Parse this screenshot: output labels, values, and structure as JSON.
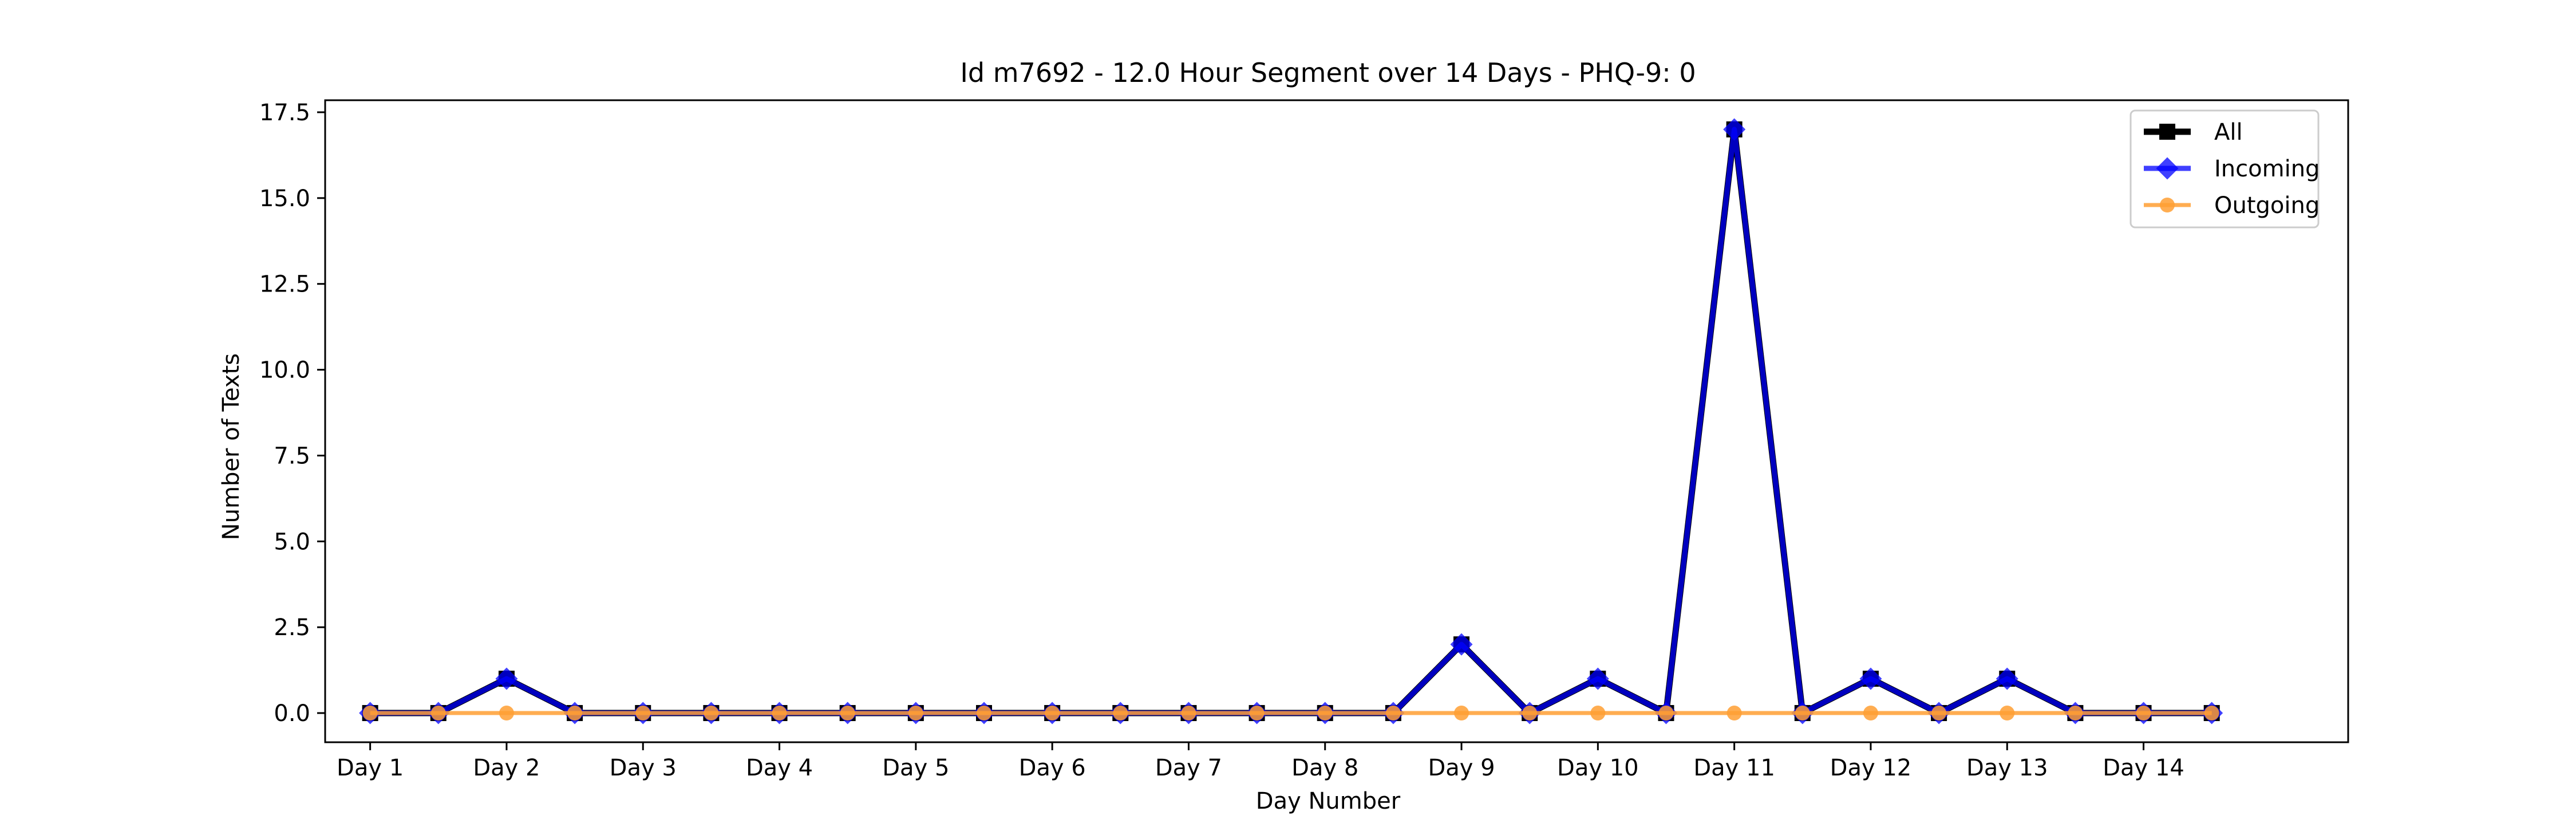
{
  "chart_data": {
    "type": "line",
    "title": "Id m7692 - 12.0 Hour Segment over 14 Days - PHQ-9: 0",
    "xlabel": "Day Number",
    "ylabel": "Number of Texts",
    "x_tick_labels": [
      "Day 1",
      "Day 2",
      "Day 3",
      "Day 4",
      "Day 5",
      "Day 6",
      "Day 7",
      "Day 8",
      "Day 9",
      "Day 10",
      "Day 11",
      "Day 12",
      "Day 13",
      "Day 14"
    ],
    "x_values": [
      1,
      1.5,
      2,
      2.5,
      3,
      3.5,
      4,
      4.5,
      5,
      5.5,
      6,
      6.5,
      7,
      7.5,
      8,
      8.5,
      9,
      9.5,
      10,
      10.5,
      11,
      11.5,
      12,
      12.5,
      13,
      13.5,
      14,
      14.5
    ],
    "xlim": [
      0.67,
      15.5
    ],
    "ylim": [
      -0.85,
      17.85
    ],
    "y_ticks": [
      0.0,
      2.5,
      5.0,
      7.5,
      10.0,
      12.5,
      15.0,
      17.5
    ],
    "y_tick_labels": [
      "0.0",
      "2.5",
      "5.0",
      "7.5",
      "10.0",
      "12.5",
      "15.0",
      "17.5"
    ],
    "grid": false,
    "legend_position": "upper right",
    "series": [
      {
        "name": "All",
        "color": "#000000",
        "marker": "square",
        "values": [
          0,
          0,
          1,
          0,
          0,
          0,
          0,
          0,
          0,
          0,
          0,
          0,
          0,
          0,
          0,
          0,
          2,
          0,
          1,
          0,
          17,
          0,
          1,
          0,
          1,
          0,
          0,
          0
        ]
      },
      {
        "name": "Incoming",
        "color": "#0000ff",
        "marker": "diamond",
        "values": [
          0,
          0,
          1,
          0,
          0,
          0,
          0,
          0,
          0,
          0,
          0,
          0,
          0,
          0,
          0,
          0,
          2,
          0,
          1,
          0,
          17,
          0,
          1,
          0,
          1,
          0,
          0,
          0
        ]
      },
      {
        "name": "Outgoing",
        "color": "#ff9f33",
        "marker": "circle",
        "values": [
          0,
          0,
          0,
          0,
          0,
          0,
          0,
          0,
          0,
          0,
          0,
          0,
          0,
          0,
          0,
          0,
          0,
          0,
          0,
          0,
          0,
          0,
          0,
          0,
          0,
          0,
          0,
          0
        ]
      }
    ]
  }
}
